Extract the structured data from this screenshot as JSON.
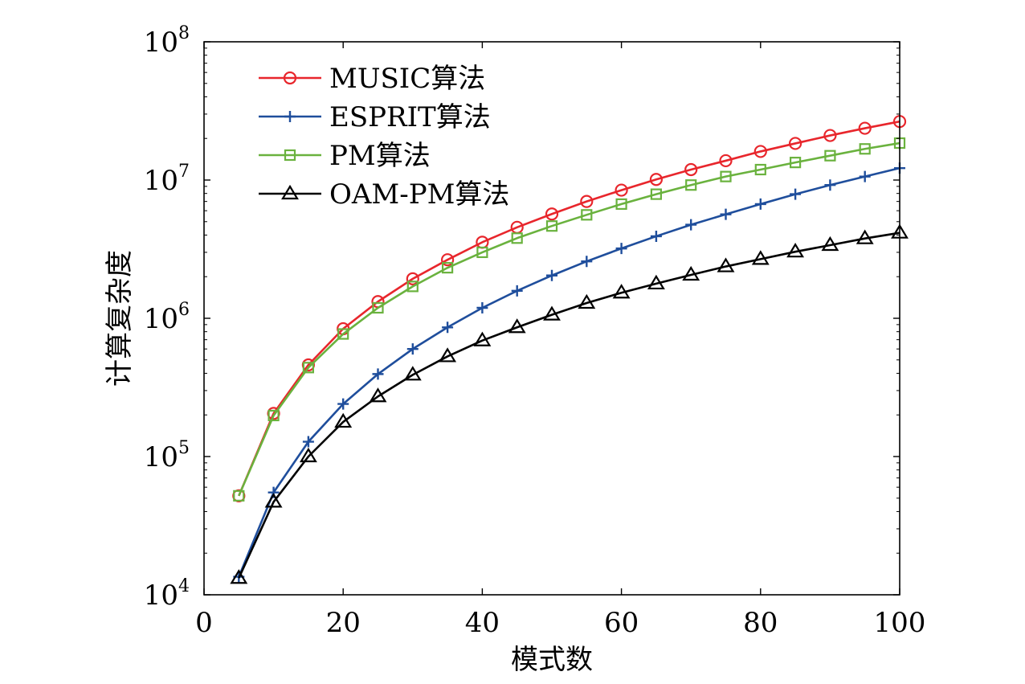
{
  "chart_data": {
    "type": "line",
    "title": "",
    "xlabel": "模式数",
    "ylabel": "计算复杂度",
    "xlim": [
      0,
      100
    ],
    "ylim": [
      10000,
      100000000
    ],
    "y_scale": "log",
    "grid": false,
    "legend_position": "top-left",
    "x_ticks": [
      0,
      20,
      40,
      60,
      80,
      100
    ],
    "y_ticks": [
      {
        "value": 10000,
        "base": "10",
        "exp": "4"
      },
      {
        "value": 100000,
        "base": "10",
        "exp": "5"
      },
      {
        "value": 1000000,
        "base": "10",
        "exp": "6"
      },
      {
        "value": 10000000,
        "base": "10",
        "exp": "7"
      },
      {
        "value": 100000000,
        "base": "10",
        "exp": "8"
      }
    ],
    "x": [
      5,
      10,
      15,
      20,
      25,
      30,
      35,
      40,
      45,
      50,
      55,
      60,
      65,
      70,
      75,
      80,
      85,
      90,
      95,
      100
    ],
    "series": [
      {
        "name": "MUSIC算法",
        "color": "#e8262c",
        "marker": "circle",
        "values": [
          52000,
          205000,
          460000,
          840000,
          1320000,
          1930000,
          2650000,
          3550000,
          4550000,
          5680000,
          7000000,
          8450000,
          10100000,
          11900000,
          13800000,
          16100000,
          18400000,
          21000000,
          23700000,
          26500000
        ]
      },
      {
        "name": "ESPRIT算法",
        "color": "#1f4e9c",
        "marker": "plus",
        "values": [
          13500,
          55000,
          128000,
          240000,
          395000,
          600000,
          860000,
          1190000,
          1580000,
          2040000,
          2580000,
          3200000,
          3920000,
          4750000,
          5650000,
          6700000,
          7900000,
          9200000,
          10600000,
          12200000
        ]
      },
      {
        "name": "PM算法",
        "color": "#6ab23e",
        "marker": "square",
        "values": [
          52000,
          198000,
          440000,
          770000,
          1190000,
          1700000,
          2320000,
          3000000,
          3800000,
          4650000,
          5600000,
          6700000,
          7900000,
          9200000,
          10600000,
          11900000,
          13400000,
          15000000,
          16800000,
          18500000
        ]
      },
      {
        "name": "OAM-PM算法",
        "color": "#000000",
        "marker": "triangle",
        "values": [
          13200,
          47000,
          100000,
          178000,
          272000,
          390000,
          530000,
          690000,
          860000,
          1060000,
          1290000,
          1530000,
          1780000,
          2060000,
          2370000,
          2680000,
          3030000,
          3380000,
          3780000,
          4150000
        ]
      }
    ]
  }
}
